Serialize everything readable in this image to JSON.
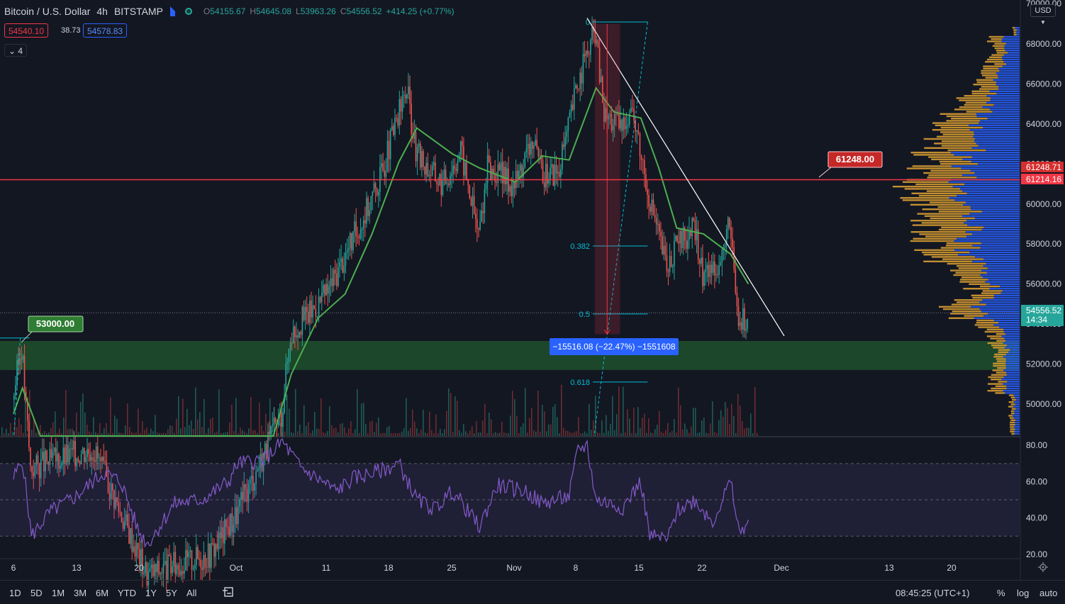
{
  "header": {
    "symbol": "Bitcoin / U.S. Dollar",
    "interval": "4h",
    "exchange": "BITSTAMP",
    "open_label": "O",
    "open": "54155.67",
    "high_label": "H",
    "high": "54645.08",
    "low_label": "L",
    "low": "53963.26",
    "close_label": "C",
    "close": "54556.52",
    "change": "+414.25 (+0.77%)",
    "bid": "54540.10",
    "spread": "38.73",
    "ask": "54578.83",
    "collapsed_indicators": "4"
  },
  "currency": "USD",
  "colors": {
    "background": "#131722",
    "up": "#26a69a",
    "down": "#ef5350",
    "ma": "#4caf50",
    "rsi": "#7e57c2",
    "profile_up": "#2962ff",
    "profile_down": "#d59b32",
    "resistance": "#f23645",
    "support_zone": "#1e4d2b",
    "fib": "#00bcd4"
  },
  "chart_data": {
    "type": "candlestick",
    "title": "",
    "price_axis": {
      "ticks": [
        "50000.00",
        "52000.00",
        "54000.00",
        "56000.00",
        "58000.00",
        "60000.00",
        "62000.00",
        "64000.00",
        "66000.00",
        "68000.00",
        "70000.00"
      ],
      "range": [
        48400,
        70200
      ]
    },
    "time_axis": {
      "ticks": [
        "6",
        "13",
        "20",
        "Oct",
        "11",
        "18",
        "25",
        "Nov",
        "8",
        "15",
        "22",
        "Dec",
        "13",
        "20"
      ]
    },
    "price_path": [
      {
        "t": "Sep 6",
        "p": 50200
      },
      {
        "t": "Sep 7",
        "p": 52900
      },
      {
        "t": "Sep 8",
        "p": 46800
      },
      {
        "t": "Sep 15",
        "p": 47800
      },
      {
        "t": "Sep 21",
        "p": 41500
      },
      {
        "t": "Sep 28",
        "p": 42500
      },
      {
        "t": "Oct 1",
        "p": 44500
      },
      {
        "t": "Oct 6",
        "p": 49500
      },
      {
        "t": "Oct 7",
        "p": 53500
      },
      {
        "t": "Oct 11",
        "p": 55500
      },
      {
        "t": "Oct 15",
        "p": 59200
      },
      {
        "t": "Oct 17",
        "p": 61300
      },
      {
        "t": "Oct 20",
        "p": 65800
      },
      {
        "t": "Oct 21",
        "p": 62500
      },
      {
        "t": "Oct 24",
        "p": 61000
      },
      {
        "t": "Oct 26",
        "p": 62700
      },
      {
        "t": "Oct 28",
        "p": 58500
      },
      {
        "t": "Oct 29",
        "p": 61800
      },
      {
        "t": "Nov 1",
        "p": 61000
      },
      {
        "t": "Nov 3",
        "p": 63200
      },
      {
        "t": "Nov 4",
        "p": 61500
      },
      {
        "t": "Nov 6",
        "p": 61600
      },
      {
        "t": "Nov 8",
        "p": 66000
      },
      {
        "t": "Nov 10",
        "p": 68700
      },
      {
        "t": "Nov 11",
        "p": 64500
      },
      {
        "t": "Nov 13",
        "p": 63800
      },
      {
        "t": "Nov 14",
        "p": 65000
      },
      {
        "t": "Nov 16",
        "p": 60500
      },
      {
        "t": "Nov 18",
        "p": 56800
      },
      {
        "t": "Nov 19",
        "p": 57800
      },
      {
        "t": "Nov 21",
        "p": 58800
      },
      {
        "t": "Nov 22",
        "p": 56500
      },
      {
        "t": "Nov 24",
        "p": 57200
      },
      {
        "t": "Nov 25",
        "p": 58900
      },
      {
        "t": "Nov 26",
        "p": 54000
      },
      {
        "t": "Nov 27",
        "p": 54500
      }
    ],
    "ma_path": [
      {
        "t": "Sep 6",
        "p": 49500
      },
      {
        "t": "Sep 7",
        "p": 50800
      },
      {
        "t": "Sep 9",
        "p": 48400
      },
      {
        "t": "Oct 5",
        "p": 48400
      },
      {
        "t": "Oct 7",
        "p": 51500
      },
      {
        "t": "Oct 10",
        "p": 54300
      },
      {
        "t": "Oct 13",
        "p": 55500
      },
      {
        "t": "Oct 16",
        "p": 58500
      },
      {
        "t": "Oct 19",
        "p": 62100
      },
      {
        "t": "Oct 21",
        "p": 63800
      },
      {
        "t": "Oct 25",
        "p": 62500
      },
      {
        "t": "Oct 28",
        "p": 61800
      },
      {
        "t": "Nov 1",
        "p": 61100
      },
      {
        "t": "Nov 4",
        "p": 62400
      },
      {
        "t": "Nov 7",
        "p": 62200
      },
      {
        "t": "Nov 10",
        "p": 65800
      },
      {
        "t": "Nov 12",
        "p": 64600
      },
      {
        "t": "Nov 15",
        "p": 64300
      },
      {
        "t": "Nov 17",
        "p": 61800
      },
      {
        "t": "Nov 19",
        "p": 58800
      },
      {
        "t": "Nov 22",
        "p": 58500
      },
      {
        "t": "Nov 25",
        "p": 57500
      },
      {
        "t": "Nov 27",
        "p": 56000
      }
    ],
    "rsi": {
      "ticks": [
        "20.00",
        "40.00",
        "60.00",
        "80.00"
      ],
      "range": [
        18,
        84
      ],
      "band": [
        30,
        70
      ],
      "mid": 50,
      "path": [
        {
          "t": "Sep 6",
          "v": 62
        },
        {
          "t": "Sep 7",
          "v": 72
        },
        {
          "t": "Sep 8",
          "v": 30
        },
        {
          "t": "Sep 10",
          "v": 43
        },
        {
          "t": "Sep 13",
          "v": 52
        },
        {
          "t": "Sep 16",
          "v": 65
        },
        {
          "t": "Sep 18",
          "v": 60
        },
        {
          "t": "Sep 20",
          "v": 32
        },
        {
          "t": "Sep 21",
          "v": 26
        },
        {
          "t": "Sep 24",
          "v": 48
        },
        {
          "t": "Sep 27",
          "v": 50
        },
        {
          "t": "Sep 30",
          "v": 60
        },
        {
          "t": "Oct 1",
          "v": 70
        },
        {
          "t": "Oct 4",
          "v": 72
        },
        {
          "t": "Oct 6",
          "v": 82
        },
        {
          "t": "Oct 8",
          "v": 68
        },
        {
          "t": "Oct 12",
          "v": 55
        },
        {
          "t": "Oct 14",
          "v": 62
        },
        {
          "t": "Oct 17",
          "v": 66
        },
        {
          "t": "Oct 19",
          "v": 70
        },
        {
          "t": "Oct 21",
          "v": 50
        },
        {
          "t": "Oct 23",
          "v": 45
        },
        {
          "t": "Oct 25",
          "v": 55
        },
        {
          "t": "Oct 28",
          "v": 35
        },
        {
          "t": "Oct 30",
          "v": 58
        },
        {
          "t": "Nov 2",
          "v": 55
        },
        {
          "t": "Nov 4",
          "v": 48
        },
        {
          "t": "Nov 7",
          "v": 52
        },
        {
          "t": "Nov 8",
          "v": 78
        },
        {
          "t": "Nov 9",
          "v": 80
        },
        {
          "t": "Nov 10",
          "v": 50
        },
        {
          "t": "Nov 13",
          "v": 46
        },
        {
          "t": "Nov 15",
          "v": 60
        },
        {
          "t": "Nov 16",
          "v": 30
        },
        {
          "t": "Nov 18",
          "v": 28
        },
        {
          "t": "Nov 19",
          "v": 44
        },
        {
          "t": "Nov 21",
          "v": 50
        },
        {
          "t": "Nov 23",
          "v": 38
        },
        {
          "t": "Nov 25",
          "v": 60
        },
        {
          "t": "Nov 26",
          "v": 31
        },
        {
          "t": "Nov 27",
          "v": 39
        }
      ]
    },
    "resistance_line": 61214.16,
    "support_zone": [
      51700,
      53150
    ],
    "fib_retracement": {
      "levels": [
        {
          "ratio": "0",
          "price": 69100
        },
        {
          "ratio": "0.382",
          "price": 57900
        },
        {
          "ratio": "0.5",
          "price": 54500
        },
        {
          "ratio": "0.618",
          "price": 51100
        }
      ]
    },
    "trendline": [
      {
        "t": "Nov 9",
        "p": 69300
      },
      {
        "t": "Dec 1",
        "p": 53400
      }
    ],
    "measure": {
      "from": {
        "t": "Nov 11",
        "p": 69000
      },
      "to": {
        "t": "Nov 11",
        "p": 53500
      },
      "label": "−15516.08 (−22.47%) −1551608"
    },
    "labels": {
      "support": "53000.00",
      "resistance": "61248.00",
      "axis_alert": "61248.71",
      "axis_line": "61214.16",
      "axis_last": "54556.52",
      "axis_countdown": "14:34"
    }
  },
  "toolbar": {
    "timeframes": [
      "1D",
      "5D",
      "1M",
      "3M",
      "6M",
      "YTD",
      "1Y",
      "5Y",
      "All"
    ],
    "clock": "08:45:25 (UTC+1)",
    "percent": "%",
    "log": "log",
    "auto": "auto"
  }
}
